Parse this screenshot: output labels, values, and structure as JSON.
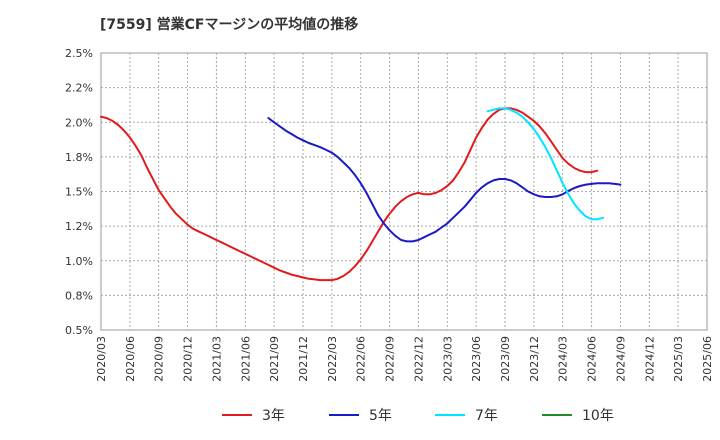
{
  "chart_data": {
    "type": "line",
    "title": "[7559]  営業CFマージンの平均値の推移",
    "xlabel": "",
    "ylabel": "",
    "x_categories": [
      "2020/03",
      "2020/06",
      "2020/09",
      "2020/12",
      "2021/03",
      "2021/06",
      "2021/09",
      "2021/12",
      "2022/03",
      "2022/06",
      "2022/09",
      "2022/12",
      "2023/03",
      "2023/06",
      "2023/09",
      "2023/12",
      "2024/03",
      "2024/06",
      "2024/09",
      "2024/12",
      "2025/03",
      "2025/06"
    ],
    "y_ticks": [
      "2.5%",
      "2.2%",
      "2.0%",
      "1.8%",
      "1.5%",
      "1.2%",
      "1.0%",
      "0.8%",
      "0.5%"
    ],
    "ylim": [
      0.5,
      2.5
    ],
    "grid": true,
    "legend_position": "bottom",
    "series": [
      {
        "name": "3年",
        "color": "#e31a1c",
        "points": [
          [
            0,
            2.04
          ],
          [
            0.2,
            2.03
          ],
          [
            0.4,
            2.01
          ],
          [
            0.6,
            1.98
          ],
          [
            0.8,
            1.94
          ],
          [
            1.0,
            1.89
          ],
          [
            1.2,
            1.83
          ],
          [
            1.4,
            1.76
          ],
          [
            1.6,
            1.67
          ],
          [
            1.8,
            1.59
          ],
          [
            2.0,
            1.51
          ],
          [
            2.2,
            1.45
          ],
          [
            2.4,
            1.39
          ],
          [
            2.6,
            1.34
          ],
          [
            2.8,
            1.3
          ],
          [
            3.0,
            1.26
          ],
          [
            3.2,
            1.23
          ],
          [
            3.4,
            1.21
          ],
          [
            3.6,
            1.19
          ],
          [
            3.8,
            1.17
          ],
          [
            4.0,
            1.15
          ],
          [
            4.2,
            1.13
          ],
          [
            4.4,
            1.11
          ],
          [
            4.6,
            1.09
          ],
          [
            4.8,
            1.07
          ],
          [
            5.0,
            1.05
          ],
          [
            5.2,
            1.03
          ],
          [
            5.4,
            1.01
          ],
          [
            5.6,
            0.99
          ],
          [
            5.8,
            0.97
          ],
          [
            6.0,
            0.95
          ],
          [
            6.2,
            0.93
          ],
          [
            6.4,
            0.915
          ],
          [
            6.6,
            0.9
          ],
          [
            6.8,
            0.89
          ],
          [
            7.0,
            0.88
          ],
          [
            7.2,
            0.87
          ],
          [
            7.4,
            0.865
          ],
          [
            7.6,
            0.86
          ],
          [
            7.8,
            0.86
          ],
          [
            8.0,
            0.86
          ],
          [
            8.2,
            0.87
          ],
          [
            8.4,
            0.89
          ],
          [
            8.6,
            0.92
          ],
          [
            8.8,
            0.96
          ],
          [
            9.0,
            1.01
          ],
          [
            9.2,
            1.07
          ],
          [
            9.4,
            1.14
          ],
          [
            9.6,
            1.21
          ],
          [
            9.8,
            1.28
          ],
          [
            10.0,
            1.34
          ],
          [
            10.2,
            1.39
          ],
          [
            10.4,
            1.43
          ],
          [
            10.6,
            1.46
          ],
          [
            10.8,
            1.48
          ],
          [
            11.0,
            1.49
          ],
          [
            11.2,
            1.48
          ],
          [
            11.4,
            1.48
          ],
          [
            11.6,
            1.49
          ],
          [
            11.8,
            1.51
          ],
          [
            12.0,
            1.54
          ],
          [
            12.2,
            1.58
          ],
          [
            12.4,
            1.64
          ],
          [
            12.6,
            1.71
          ],
          [
            12.8,
            1.8
          ],
          [
            13.0,
            1.89
          ],
          [
            13.2,
            1.96
          ],
          [
            13.4,
            2.02
          ],
          [
            13.6,
            2.06
          ],
          [
            13.8,
            2.09
          ],
          [
            14.0,
            2.1
          ],
          [
            14.2,
            2.1
          ],
          [
            14.4,
            2.09
          ],
          [
            14.6,
            2.07
          ],
          [
            14.8,
            2.04
          ],
          [
            15.0,
            2.01
          ],
          [
            15.2,
            1.97
          ],
          [
            15.4,
            1.92
          ],
          [
            15.6,
            1.86
          ],
          [
            15.8,
            1.8
          ],
          [
            16.0,
            1.74
          ],
          [
            16.2,
            1.7
          ],
          [
            16.4,
            1.67
          ],
          [
            16.6,
            1.65
          ],
          [
            16.8,
            1.64
          ],
          [
            17.0,
            1.64
          ],
          [
            17.2,
            1.65
          ]
        ]
      },
      {
        "name": "5年",
        "color": "#1a1ac8",
        "points": [
          [
            5.8,
            2.03
          ],
          [
            6.0,
            2.0
          ],
          [
            6.2,
            1.97
          ],
          [
            6.4,
            1.94
          ],
          [
            6.6,
            1.915
          ],
          [
            6.8,
            1.89
          ],
          [
            7.0,
            1.87
          ],
          [
            7.2,
            1.85
          ],
          [
            7.4,
            1.835
          ],
          [
            7.6,
            1.82
          ],
          [
            7.8,
            1.8
          ],
          [
            8.0,
            1.78
          ],
          [
            8.2,
            1.75
          ],
          [
            8.4,
            1.71
          ],
          [
            8.6,
            1.67
          ],
          [
            8.8,
            1.62
          ],
          [
            9.0,
            1.56
          ],
          [
            9.2,
            1.49
          ],
          [
            9.4,
            1.41
          ],
          [
            9.6,
            1.33
          ],
          [
            9.8,
            1.27
          ],
          [
            10.0,
            1.22
          ],
          [
            10.2,
            1.18
          ],
          [
            10.4,
            1.15
          ],
          [
            10.6,
            1.14
          ],
          [
            10.8,
            1.14
          ],
          [
            11.0,
            1.15
          ],
          [
            11.2,
            1.17
          ],
          [
            11.4,
            1.19
          ],
          [
            11.6,
            1.21
          ],
          [
            11.8,
            1.24
          ],
          [
            12.0,
            1.27
          ],
          [
            12.2,
            1.31
          ],
          [
            12.4,
            1.35
          ],
          [
            12.6,
            1.39
          ],
          [
            12.8,
            1.44
          ],
          [
            13.0,
            1.49
          ],
          [
            13.2,
            1.53
          ],
          [
            13.4,
            1.56
          ],
          [
            13.6,
            1.58
          ],
          [
            13.8,
            1.59
          ],
          [
            14.0,
            1.59
          ],
          [
            14.2,
            1.58
          ],
          [
            14.4,
            1.56
          ],
          [
            14.6,
            1.53
          ],
          [
            14.8,
            1.5
          ],
          [
            15.0,
            1.48
          ],
          [
            15.2,
            1.465
          ],
          [
            15.4,
            1.46
          ],
          [
            15.6,
            1.46
          ],
          [
            15.8,
            1.465
          ],
          [
            16.0,
            1.48
          ],
          [
            16.2,
            1.505
          ],
          [
            16.4,
            1.525
          ],
          [
            16.6,
            1.54
          ],
          [
            16.8,
            1.55
          ],
          [
            17.0,
            1.555
          ],
          [
            17.2,
            1.56
          ],
          [
            17.4,
            1.56
          ],
          [
            17.6,
            1.56
          ],
          [
            17.8,
            1.555
          ],
          [
            18.0,
            1.55
          ]
        ]
      },
      {
        "name": "7年",
        "color": "#00e5ff",
        "points": [
          [
            13.4,
            2.08
          ],
          [
            13.6,
            2.09
          ],
          [
            13.8,
            2.1
          ],
          [
            14.0,
            2.1
          ],
          [
            14.2,
            2.09
          ],
          [
            14.4,
            2.07
          ],
          [
            14.6,
            2.04
          ],
          [
            14.8,
            2.0
          ],
          [
            15.0,
            1.95
          ],
          [
            15.2,
            1.89
          ],
          [
            15.4,
            1.82
          ],
          [
            15.6,
            1.74
          ],
          [
            15.8,
            1.65
          ],
          [
            16.0,
            1.56
          ],
          [
            16.2,
            1.48
          ],
          [
            16.4,
            1.41
          ],
          [
            16.6,
            1.36
          ],
          [
            16.8,
            1.32
          ],
          [
            17.0,
            1.3
          ],
          [
            17.2,
            1.3
          ],
          [
            17.4,
            1.31
          ]
        ]
      },
      {
        "name": "10年",
        "color": "#228b22",
        "points": []
      }
    ]
  }
}
